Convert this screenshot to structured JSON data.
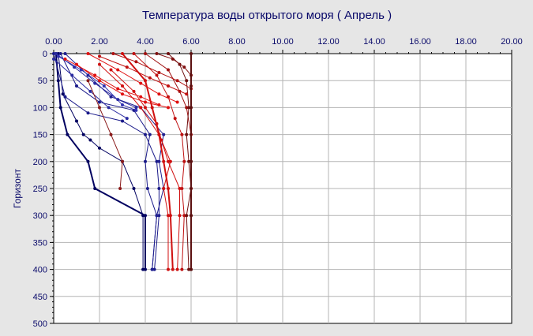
{
  "chart_data": {
    "type": "line",
    "title": "Температура воды открытого моря    ( Апрель )",
    "xlabel": "",
    "ylabel": "Горизонт",
    "x_axis_position": "top",
    "y_axis_inverted": true,
    "xlim": [
      0,
      20
    ],
    "ylim": [
      0,
      500
    ],
    "x_ticks": [
      "0.00",
      "2.00",
      "4.00",
      "6.00",
      "8.00",
      "10.00",
      "12.00",
      "14.00",
      "16.00",
      "18.00",
      "20.00"
    ],
    "y_ticks": [
      "0",
      "50",
      "100",
      "150",
      "200",
      "250",
      "300",
      "350",
      "400",
      "450",
      "500"
    ],
    "grid": true,
    "legend": "none",
    "series": [
      {
        "color": "#000060",
        "width": 2,
        "points": [
          [
            0.1,
            0
          ],
          [
            0.2,
            50
          ],
          [
            0.3,
            100
          ],
          [
            0.6,
            150
          ],
          [
            1.5,
            200
          ],
          [
            1.8,
            250
          ],
          [
            4.0,
            300
          ],
          [
            4.0,
            400
          ]
        ]
      },
      {
        "color": "#000060",
        "width": 1,
        "points": [
          [
            0.2,
            0
          ],
          [
            0.4,
            75
          ],
          [
            1.0,
            125
          ],
          [
            1.3,
            150
          ],
          [
            1.6,
            160
          ],
          [
            2.0,
            175
          ],
          [
            3.0,
            200
          ],
          [
            3.5,
            250
          ],
          [
            3.9,
            300
          ],
          [
            3.9,
            400
          ]
        ]
      },
      {
        "color": "#1a1a8a",
        "width": 1,
        "points": [
          [
            0.0,
            0
          ],
          [
            0.5,
            80
          ],
          [
            1.5,
            110
          ],
          [
            3.0,
            125
          ],
          [
            4.0,
            150
          ],
          [
            4.5,
            200
          ],
          [
            4.6,
            250
          ],
          [
            4.6,
            300
          ],
          [
            4.4,
            400
          ]
        ]
      },
      {
        "color": "#1a1a8a",
        "width": 1,
        "points": [
          [
            0.3,
            0
          ],
          [
            1.0,
            60
          ],
          [
            2.0,
            90
          ],
          [
            3.5,
            105
          ],
          [
            4.2,
            150
          ],
          [
            4.0,
            200
          ],
          [
            4.1,
            250
          ],
          [
            4.5,
            300
          ],
          [
            4.3,
            400
          ]
        ]
      },
      {
        "color": "#202090",
        "width": 1,
        "points": [
          [
            0.5,
            0
          ],
          [
            1.5,
            40
          ],
          [
            2.5,
            80
          ],
          [
            3.8,
            100
          ],
          [
            4.8,
            150
          ],
          [
            4.6,
            200
          ],
          [
            4.8,
            250
          ],
          [
            4.5,
            300
          ],
          [
            4.3,
            400
          ]
        ]
      },
      {
        "color": "#2a2aa0",
        "width": 1,
        "points": [
          [
            0.0,
            10
          ],
          [
            0.8,
            40
          ],
          [
            1.6,
            70
          ],
          [
            2.4,
            100
          ],
          [
            3.2,
            120
          ]
        ]
      },
      {
        "color": "#2a2aa0",
        "width": 1,
        "points": [
          [
            0.1,
            0
          ],
          [
            0.9,
            25
          ],
          [
            1.8,
            55
          ],
          [
            2.8,
            85
          ],
          [
            3.6,
            100
          ]
        ]
      },
      {
        "color": "#3030b0",
        "width": 1,
        "points": [
          [
            0.2,
            5
          ],
          [
            1.2,
            30
          ],
          [
            2.2,
            60
          ],
          [
            3.0,
            95
          ],
          [
            3.6,
            105
          ]
        ]
      },
      {
        "color": "#8a1a1a",
        "width": 1,
        "points": [
          [
            1.5,
            50
          ],
          [
            2.0,
            100
          ],
          [
            2.5,
            150
          ],
          [
            3.0,
            200
          ],
          [
            2.9,
            250
          ]
        ]
      },
      {
        "color": "#d01010",
        "width": 2,
        "points": [
          [
            3.0,
            0
          ],
          [
            4.0,
            50
          ],
          [
            4.3,
            100
          ],
          [
            4.6,
            150
          ],
          [
            4.8,
            200
          ],
          [
            5.0,
            250
          ],
          [
            5.1,
            300
          ],
          [
            5.2,
            400
          ]
        ]
      },
      {
        "color": "#d01010",
        "width": 1,
        "points": [
          [
            2.5,
            30
          ],
          [
            3.5,
            70
          ],
          [
            4.0,
            100
          ],
          [
            4.5,
            130
          ],
          [
            4.7,
            160
          ],
          [
            5.0,
            200
          ],
          [
            5.5,
            250
          ],
          [
            5.5,
            300
          ],
          [
            5.4,
            400
          ]
        ]
      },
      {
        "color": "#d01010",
        "width": 1,
        "points": [
          [
            2.0,
            20
          ],
          [
            3.0,
            60
          ],
          [
            3.8,
            100
          ],
          [
            4.6,
            150
          ],
          [
            5.1,
            200
          ],
          [
            4.8,
            250
          ],
          [
            5.0,
            300
          ],
          [
            5.0,
            400
          ]
        ]
      },
      {
        "color": "#c01010",
        "width": 1,
        "points": [
          [
            3.5,
            0
          ],
          [
            4.5,
            40
          ],
          [
            5.0,
            80
          ],
          [
            5.3,
            120
          ],
          [
            5.6,
            150
          ],
          [
            5.7,
            200
          ],
          [
            5.6,
            250
          ],
          [
            5.7,
            300
          ],
          [
            5.6,
            400
          ]
        ]
      },
      {
        "color": "#a01010",
        "width": 1,
        "points": [
          [
            4.0,
            0
          ],
          [
            5.0,
            30
          ],
          [
            5.5,
            70
          ],
          [
            5.8,
            100
          ],
          [
            6.0,
            150
          ],
          [
            6.0,
            200
          ],
          [
            6.0,
            250
          ],
          [
            6.0,
            300
          ],
          [
            6.0,
            400
          ]
        ]
      },
      {
        "color": "#701010",
        "width": 1,
        "points": [
          [
            5.0,
            0
          ],
          [
            5.5,
            20
          ],
          [
            5.8,
            50
          ],
          [
            5.9,
            100
          ],
          [
            5.8,
            150
          ],
          [
            5.9,
            200
          ],
          [
            6.0,
            250
          ],
          [
            5.8,
            300
          ],
          [
            5.9,
            400
          ]
        ]
      },
      {
        "color": "#e01010",
        "width": 1,
        "points": [
          [
            1.0,
            20
          ],
          [
            2.0,
            50
          ],
          [
            3.0,
            75
          ],
          [
            4.0,
            90
          ],
          [
            5.0,
            100
          ]
        ]
      },
      {
        "color": "#e01010",
        "width": 1,
        "points": [
          [
            0.5,
            10
          ],
          [
            1.8,
            40
          ],
          [
            2.8,
            65
          ],
          [
            3.8,
            80
          ],
          [
            4.6,
            95
          ]
        ]
      },
      {
        "color": "#e01010",
        "width": 1,
        "points": [
          [
            1.5,
            0
          ],
          [
            2.8,
            30
          ],
          [
            3.8,
            55
          ],
          [
            4.6,
            75
          ],
          [
            5.4,
            90
          ]
        ]
      },
      {
        "color": "#c01010",
        "width": 1,
        "points": [
          [
            2.0,
            5
          ],
          [
            3.2,
            25
          ],
          [
            4.2,
            45
          ],
          [
            5.0,
            60
          ],
          [
            5.8,
            75
          ]
        ]
      },
      {
        "color": "#b01010",
        "width": 1,
        "points": [
          [
            2.6,
            0
          ],
          [
            3.6,
            15
          ],
          [
            4.6,
            35
          ],
          [
            5.4,
            50
          ],
          [
            6.0,
            65
          ]
        ]
      },
      {
        "color": "#801010",
        "width": 1,
        "points": [
          [
            4.5,
            0
          ],
          [
            5.2,
            10
          ],
          [
            5.7,
            25
          ],
          [
            6.0,
            40
          ],
          [
            6.0,
            60
          ]
        ]
      },
      {
        "color": "#5a1010",
        "width": 2,
        "points": [
          [
            6.0,
            0
          ],
          [
            6.0,
            100
          ],
          [
            6.0,
            200
          ],
          [
            6.0,
            300
          ],
          [
            6.0,
            400
          ]
        ]
      }
    ]
  }
}
